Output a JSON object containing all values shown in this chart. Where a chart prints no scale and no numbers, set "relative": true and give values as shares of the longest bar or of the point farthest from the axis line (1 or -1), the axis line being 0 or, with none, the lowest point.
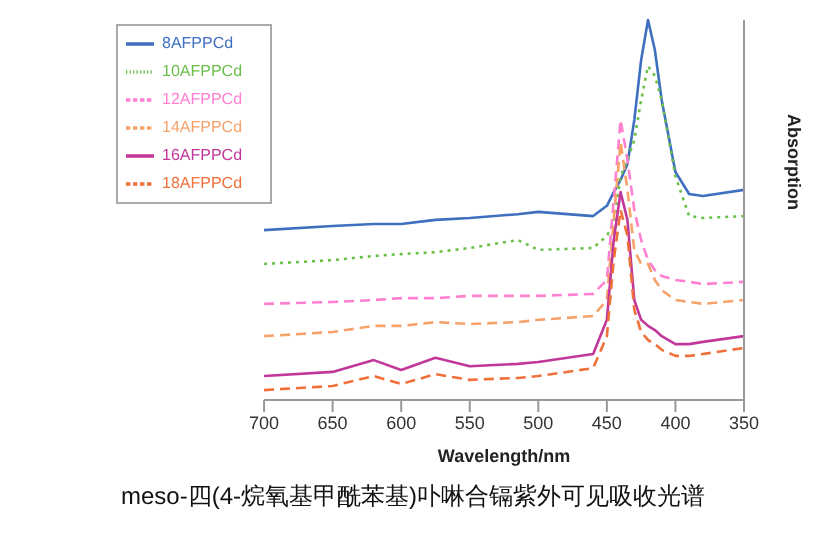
{
  "chart_data": {
    "type": "line",
    "title": "meso-四(4-烷氧基甲酰苯基)卟啉合镉紫外可见吸收光谱",
    "xlabel": "Wavelength/nm",
    "ylabel": "Absorption",
    "relative": true,
    "x": [
      700,
      650,
      620,
      600,
      575,
      550,
      515,
      500,
      460,
      450,
      445,
      440,
      435,
      430,
      425,
      420,
      415,
      410,
      400,
      390,
      380,
      350
    ],
    "xlim": [
      700,
      350
    ],
    "xticks": [
      700,
      650,
      600,
      550,
      500,
      450,
      400,
      350
    ],
    "grid": false,
    "legend": "top left",
    "marker": "none",
    "series": [
      {
        "name": "8AFPPCd",
        "color": "#3f6fbf",
        "line_style": "solid",
        "values": [
          0.447,
          0.458,
          0.463,
          0.463,
          0.474,
          0.479,
          0.489,
          0.495,
          0.484,
          0.511,
          0.547,
          0.579,
          0.621,
          0.737,
          0.895,
          1,
          0.921,
          0.789,
          0.6,
          0.542,
          0.537,
          0.553
        ]
      },
      {
        "name": "10AFPPCd",
        "color": "#6cc04a",
        "line_style": "dotted",
        "values": [
          0.358,
          0.368,
          0.379,
          0.384,
          0.389,
          0.4,
          0.421,
          0.395,
          0.4,
          0.432,
          0.463,
          0.589,
          0.632,
          0.684,
          0.789,
          0.879,
          0.853,
          0.789,
          0.589,
          0.484,
          0.479,
          0.484
        ]
      },
      {
        "name": "12AFPPCd",
        "color": "#ff7fd0",
        "line_style": "dashed",
        "values": [
          0.253,
          0.258,
          0.263,
          0.268,
          0.268,
          0.274,
          0.274,
          0.274,
          0.279,
          0.316,
          0.526,
          0.737,
          0.632,
          0.5,
          0.421,
          0.368,
          0.342,
          0.326,
          0.316,
          0.311,
          0.305,
          0.311
        ]
      },
      {
        "name": "14AFPPCd",
        "color": "#f7a26b",
        "line_style": "dashed",
        "values": [
          0.168,
          0.179,
          0.195,
          0.195,
          0.205,
          0.2,
          0.205,
          0.211,
          0.221,
          0.263,
          0.474,
          0.679,
          0.553,
          0.395,
          0.358,
          0.358,
          0.316,
          0.289,
          0.263,
          0.258,
          0.253,
          0.263
        ]
      },
      {
        "name": "16AFPPCd",
        "color": "#c2379a",
        "line_style": "solid",
        "values": [
          0.063,
          0.074,
          0.105,
          0.079,
          0.111,
          0.089,
          0.095,
          0.1,
          0.121,
          0.211,
          0.421,
          0.547,
          0.474,
          0.263,
          0.211,
          0.195,
          0.184,
          0.168,
          0.147,
          0.147,
          0.153,
          0.168
        ]
      },
      {
        "name": "18AFPPCd",
        "color": "#f0703a",
        "line_style": "dashed",
        "values": [
          0.026,
          0.037,
          0.063,
          0.042,
          0.068,
          0.053,
          0.058,
          0.063,
          0.084,
          0.168,
          0.368,
          0.5,
          0.432,
          0.237,
          0.179,
          0.158,
          0.147,
          0.132,
          0.116,
          0.116,
          0.121,
          0.137
        ]
      }
    ]
  }
}
